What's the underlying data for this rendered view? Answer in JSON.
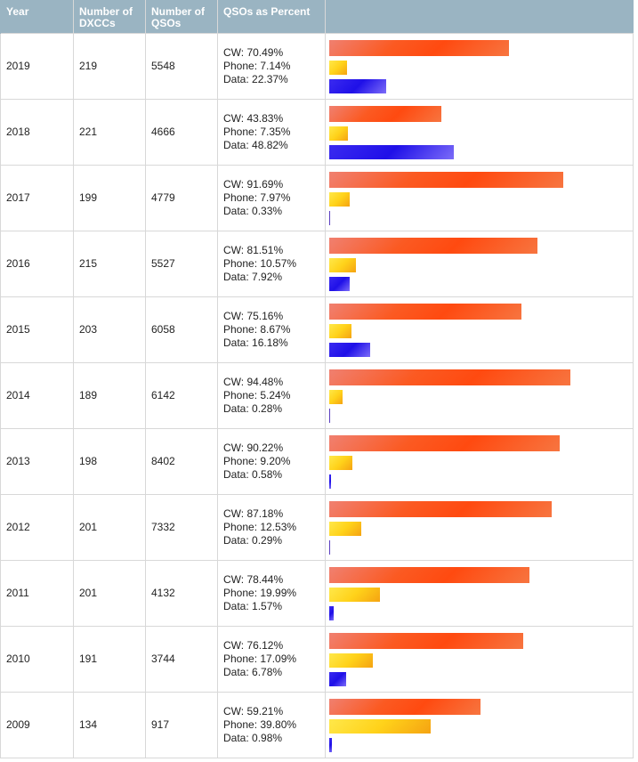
{
  "table": {
    "headers": {
      "year": "Year",
      "dxccs": "Number of DXCCs",
      "qsos": "Number of QSOs",
      "percent": "QSOs as Percent"
    },
    "rows": [
      {
        "year": "2019",
        "dxccs": "219",
        "qsos": "5548",
        "cw": "CW: 70.49%",
        "phone": "Phone: 7.14%",
        "data": "Data: 22.37%",
        "cw_pct": 70.49,
        "phone_pct": 7.14,
        "data_pct": 22.37
      },
      {
        "year": "2018",
        "dxccs": "221",
        "qsos": "4666",
        "cw": "CW: 43.83%",
        "phone": "Phone: 7.35%",
        "data": "Data: 48.82%",
        "cw_pct": 43.83,
        "phone_pct": 7.35,
        "data_pct": 48.82
      },
      {
        "year": "2017",
        "dxccs": "199",
        "qsos": "4779",
        "cw": "CW: 91.69%",
        "phone": "Phone: 7.97%",
        "data": "Data: 0.33%",
        "cw_pct": 91.69,
        "phone_pct": 7.97,
        "data_pct": 0.33
      },
      {
        "year": "2016",
        "dxccs": "215",
        "qsos": "5527",
        "cw": "CW: 81.51%",
        "phone": "Phone: 10.57%",
        "data": "Data: 7.92%",
        "cw_pct": 81.51,
        "phone_pct": 10.57,
        "data_pct": 7.92
      },
      {
        "year": "2015",
        "dxccs": "203",
        "qsos": "6058",
        "cw": "CW: 75.16%",
        "phone": "Phone: 8.67%",
        "data": "Data: 16.18%",
        "cw_pct": 75.16,
        "phone_pct": 8.67,
        "data_pct": 16.18
      },
      {
        "year": "2014",
        "dxccs": "189",
        "qsos": "6142",
        "cw": "CW: 94.48%",
        "phone": "Phone: 5.24%",
        "data": "Data: 0.28%",
        "cw_pct": 94.48,
        "phone_pct": 5.24,
        "data_pct": 0.28
      },
      {
        "year": "2013",
        "dxccs": "198",
        "qsos": "8402",
        "cw": "CW: 90.22%",
        "phone": "Phone: 9.20%",
        "data": "Data: 0.58%",
        "cw_pct": 90.22,
        "phone_pct": 9.2,
        "data_pct": 0.58
      },
      {
        "year": "2012",
        "dxccs": "201",
        "qsos": "7332",
        "cw": "CW: 87.18%",
        "phone": "Phone: 12.53%",
        "data": "Data: 0.29%",
        "cw_pct": 87.18,
        "phone_pct": 12.53,
        "data_pct": 0.29
      },
      {
        "year": "2011",
        "dxccs": "201",
        "qsos": "4132",
        "cw": "CW: 78.44%",
        "phone": "Phone: 19.99%",
        "data": "Data: 1.57%",
        "cw_pct": 78.44,
        "phone_pct": 19.99,
        "data_pct": 1.57
      },
      {
        "year": "2010",
        "dxccs": "191",
        "qsos": "3744",
        "cw": "CW: 76.12%",
        "phone": "Phone: 17.09%",
        "data": "Data: 6.78%",
        "cw_pct": 76.12,
        "phone_pct": 17.09,
        "data_pct": 6.78
      },
      {
        "year": "2009",
        "dxccs": "134",
        "qsos": "917",
        "cw": "CW: 59.21%",
        "phone": "Phone: 39.80%",
        "data": "Data: 0.98%",
        "cw_pct": 59.21,
        "phone_pct": 39.8,
        "data_pct": 0.98
      }
    ]
  },
  "colors": {
    "header_bg": "#9ab4c2",
    "header_text": "#ffffff",
    "cw_bar": "#ff4a10",
    "phone_bar": "#ffd21a",
    "data_bar": "#2a18ec"
  }
}
